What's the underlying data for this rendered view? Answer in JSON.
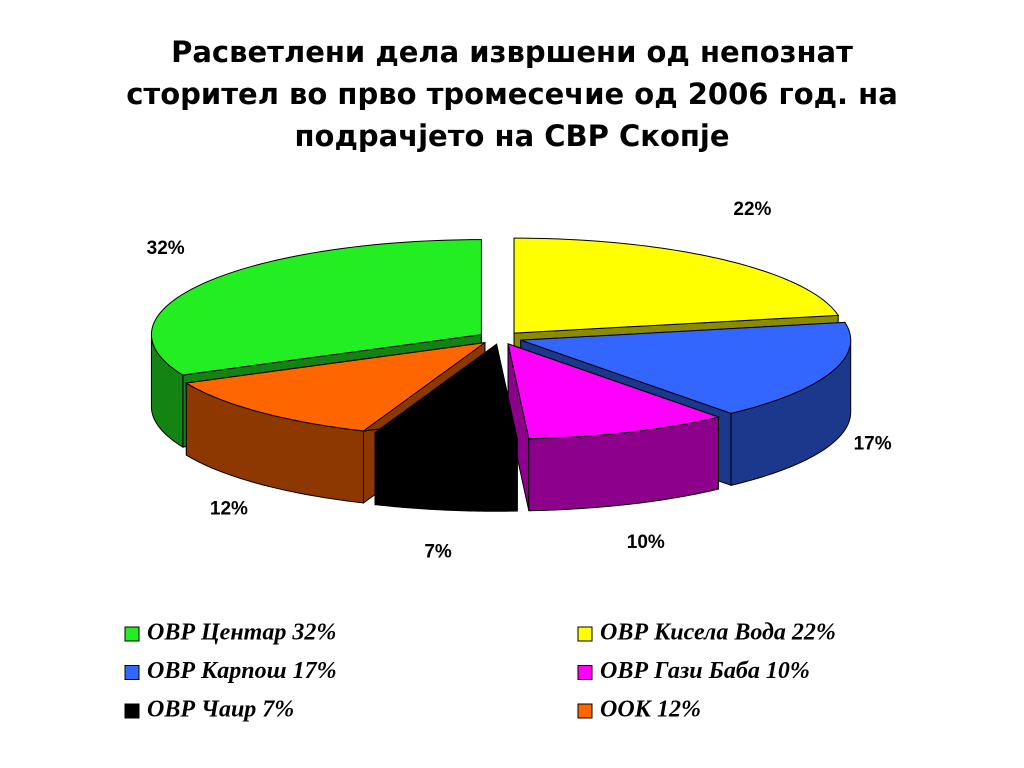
{
  "chart_data": {
    "type": "pie3d",
    "title": [
      "Расветлени дела извршени од непознат",
      "сторител во прво тромесечие од 2006 год. на",
      "подрачјето на СВР Скопје"
    ],
    "categories": [
      "ОВР Центар 32%",
      "ОВР Кисела Вода 22%",
      "ОВР Карпош 17%",
      "ОВР Гази Баба 10%",
      "ОВР Чаир 7%",
      "ООК 12%"
    ],
    "values": [
      32,
      22,
      17,
      10,
      7,
      12
    ],
    "value_labels": [
      "32%",
      "22%",
      "17%",
      "10%",
      "7%",
      "12%"
    ],
    "colors": [
      "#22ee22",
      "#ffff00",
      "#3366ff",
      "#ff00ff",
      "#000000",
      "#ff6600"
    ]
  }
}
